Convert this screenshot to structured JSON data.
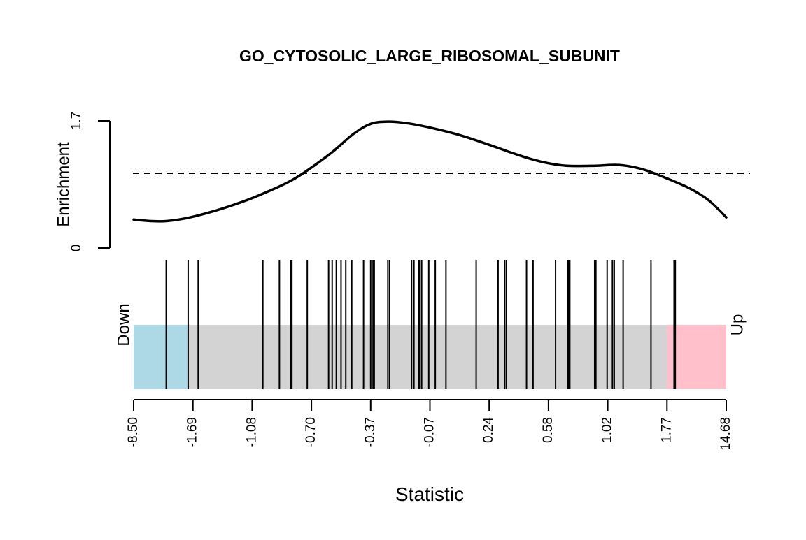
{
  "chart_data": {
    "type": "barcode",
    "title": "GO_CYTOSOLIC_LARGE_RIBOSOMAL_SUBUNIT",
    "xlabel": "Statistic",
    "ylabel": "Enrichment",
    "down_label": "Down",
    "up_label": "Up",
    "x_ticks": [
      "-8.50",
      "-1.69",
      "-1.08",
      "-0.70",
      "-0.37",
      "-0.07",
      "0.24",
      "0.58",
      "1.02",
      "1.77",
      "14.68"
    ],
    "enrichment_axis": {
      "ticks": [
        "0",
        "1.7"
      ],
      "range": [
        0,
        1.7
      ],
      "reference_line": 1.0
    },
    "rank_range": [
      0,
      1
    ],
    "down_region": [
      0,
      0.092
    ],
    "up_region": [
      0.9,
      1
    ],
    "region_colors": {
      "down": "#ADD8E6",
      "middle": "#D3D3D3",
      "up": "#FFC0CB"
    },
    "gene_positions": [
      0.055,
      0.092,
      0.109,
      0.218,
      0.246,
      0.265,
      0.267,
      0.293,
      0.329,
      0.335,
      0.342,
      0.35,
      0.358,
      0.368,
      0.388,
      0.4,
      0.404,
      0.406,
      0.429,
      0.432,
      0.469,
      0.473,
      0.481,
      0.483,
      0.486,
      0.498,
      0.509,
      0.527,
      0.578,
      0.615,
      0.626,
      0.629,
      0.663,
      0.674,
      0.712,
      0.732,
      0.734,
      0.736,
      0.778,
      0.78,
      0.799,
      0.808,
      0.811,
      0.826,
      0.873,
      0.912,
      0.914
    ],
    "enrichment_curve": {
      "x": [
        0.0,
        0.03,
        0.055,
        0.09,
        0.13,
        0.17,
        0.21,
        0.27,
        0.33,
        0.37,
        0.4,
        0.43,
        0.46,
        0.5,
        0.55,
        0.6,
        0.65,
        0.69,
        0.73,
        0.78,
        0.82,
        0.86,
        0.9,
        0.94,
        0.97,
        1.0
      ],
      "y": [
        0.38,
        0.36,
        0.36,
        0.4,
        0.48,
        0.58,
        0.7,
        0.92,
        1.25,
        1.52,
        1.66,
        1.69,
        1.67,
        1.61,
        1.51,
        1.38,
        1.24,
        1.15,
        1.1,
        1.1,
        1.11,
        1.05,
        0.93,
        0.79,
        0.64,
        0.41
      ]
    }
  }
}
